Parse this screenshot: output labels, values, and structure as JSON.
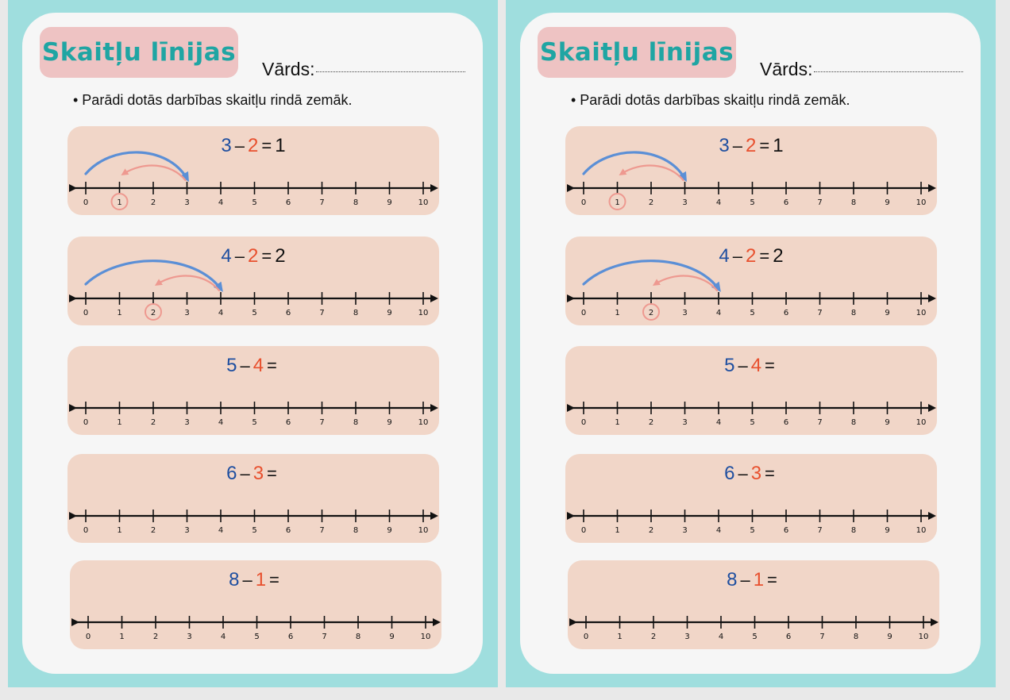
{
  "worksheets": [
    {
      "title": "Skaitļu līnijas",
      "name_label": "Vārds:",
      "instruction": "• Parādi dotās darbības skaitļu rindā zemāk.",
      "problems": [
        {
          "a": "3",
          "minus": "–",
          "b": "2",
          "equals": "=",
          "answer": "1",
          "solved": true
        },
        {
          "a": "4",
          "minus": "–",
          "b": "2",
          "equals": "=",
          "answer": "2",
          "solved": true
        },
        {
          "a": "5",
          "minus": "–",
          "b": "4",
          "equals": "=",
          "answer": "",
          "solved": false
        },
        {
          "a": "6",
          "minus": "–",
          "b": "3",
          "equals": "=",
          "answer": "",
          "solved": false
        },
        {
          "a": "8",
          "minus": "–",
          "b": "1",
          "equals": "=",
          "answer": "",
          "solved": false
        }
      ]
    },
    {
      "title": "Skaitļu līnijas",
      "name_label": "Vārds:",
      "instruction": "• Parādi dotās darbības skaitļu rindā zemāk.",
      "problems": [
        {
          "a": "3",
          "minus": "–",
          "b": "2",
          "equals": "=",
          "answer": "1",
          "solved": true
        },
        {
          "a": "4",
          "minus": "–",
          "b": "2",
          "equals": "=",
          "answer": "2",
          "solved": true
        },
        {
          "a": "5",
          "minus": "–",
          "b": "4",
          "equals": "=",
          "answer": "",
          "solved": false
        },
        {
          "a": "6",
          "minus": "–",
          "b": "3",
          "equals": "=",
          "answer": "",
          "solved": false
        },
        {
          "a": "8",
          "minus": "–",
          "b": "1",
          "equals": "=",
          "answer": "",
          "solved": false
        }
      ]
    }
  ],
  "number_line": {
    "ticks": [
      "0",
      "1",
      "2",
      "3",
      "4",
      "5",
      "6",
      "7",
      "8",
      "9",
      "10"
    ]
  },
  "colors": {
    "frame": "#9fdede",
    "title_badge": "#eec3c3",
    "title_text": "#1fa5a3",
    "card": "#f1d6c8",
    "operand": "#1f4fa0",
    "subtrahend": "#e8502e",
    "forward_arc": "#5b8fd6",
    "back_arc": "#ee9990"
  }
}
